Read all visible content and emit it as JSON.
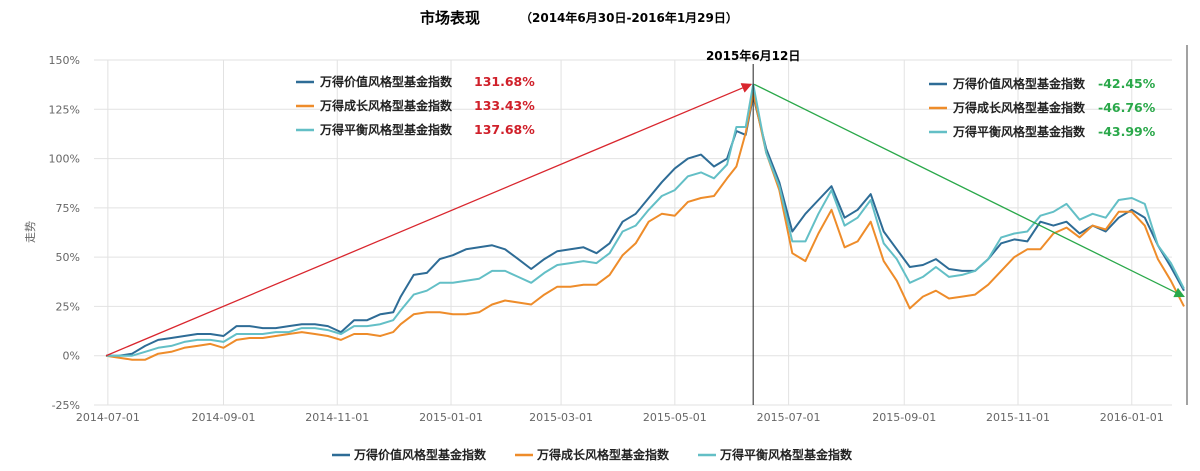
{
  "title": "市场表现",
  "subtitle": "（2014年6月30日-2016年1月29日）",
  "colors": {
    "value": "#2e6c96",
    "growth": "#ee8c2a",
    "balance": "#63bfc6",
    "grid": "#e2e2e2",
    "up_arrow": "#d9262e",
    "down_arrow": "#2aa84a"
  },
  "chart_data": {
    "type": "line",
    "ylabel": "走势",
    "ylim": [
      -25,
      150
    ],
    "y_ticks": [
      "-25%",
      "0%",
      "25%",
      "50%",
      "75%",
      "100%",
      "125%",
      "150%"
    ],
    "x_range": [
      "2014-06-30",
      "2016-01-29"
    ],
    "x_ticks": [
      "2014-07-01",
      "2014-09-01",
      "2014-11-01",
      "2015-01-01",
      "2015-03-01",
      "2015-05-01",
      "2015-07-01",
      "2015-09-01",
      "2015-11-01",
      "2016-01-01"
    ],
    "peak_date": "2015-06-12",
    "peak_label": "2015年6月12日",
    "series": [
      {
        "name": "万得价值风格型基金指数",
        "color_key": "value",
        "points": [
          [
            "2014-06-30",
            0
          ],
          [
            "2014-07-07",
            0
          ],
          [
            "2014-07-14",
            1
          ],
          [
            "2014-07-21",
            5
          ],
          [
            "2014-07-28",
            8
          ],
          [
            "2014-08-04",
            9
          ],
          [
            "2014-08-11",
            10
          ],
          [
            "2014-08-18",
            11
          ],
          [
            "2014-08-25",
            11
          ],
          [
            "2014-09-01",
            10
          ],
          [
            "2014-09-08",
            15
          ],
          [
            "2014-09-15",
            15
          ],
          [
            "2014-09-22",
            14
          ],
          [
            "2014-09-29",
            14
          ],
          [
            "2014-10-06",
            15
          ],
          [
            "2014-10-13",
            16
          ],
          [
            "2014-10-20",
            16
          ],
          [
            "2014-10-27",
            15
          ],
          [
            "2014-11-03",
            12
          ],
          [
            "2014-11-10",
            18
          ],
          [
            "2014-11-17",
            18
          ],
          [
            "2014-11-24",
            21
          ],
          [
            "2014-12-01",
            22
          ],
          [
            "2014-12-05",
            30
          ],
          [
            "2014-12-12",
            41
          ],
          [
            "2014-12-19",
            42
          ],
          [
            "2014-12-26",
            49
          ],
          [
            "2015-01-02",
            51
          ],
          [
            "2015-01-09",
            54
          ],
          [
            "2015-01-16",
            55
          ],
          [
            "2015-01-23",
            56
          ],
          [
            "2015-01-30",
            54
          ],
          [
            "2015-02-06",
            49
          ],
          [
            "2015-02-13",
            44
          ],
          [
            "2015-02-20",
            49
          ],
          [
            "2015-02-27",
            53
          ],
          [
            "2015-03-06",
            54
          ],
          [
            "2015-03-13",
            55
          ],
          [
            "2015-03-20",
            52
          ],
          [
            "2015-03-27",
            57
          ],
          [
            "2015-04-03",
            68
          ],
          [
            "2015-04-10",
            72
          ],
          [
            "2015-04-17",
            80
          ],
          [
            "2015-04-24",
            88
          ],
          [
            "2015-05-01",
            95
          ],
          [
            "2015-05-08",
            100
          ],
          [
            "2015-05-15",
            102
          ],
          [
            "2015-05-22",
            96
          ],
          [
            "2015-05-29",
            100
          ],
          [
            "2015-06-03",
            114
          ],
          [
            "2015-06-08",
            112
          ],
          [
            "2015-06-12",
            131.68
          ],
          [
            "2015-06-19",
            105
          ],
          [
            "2015-06-26",
            88
          ],
          [
            "2015-07-03",
            63
          ],
          [
            "2015-07-10",
            72
          ],
          [
            "2015-07-17",
            79
          ],
          [
            "2015-07-24",
            86
          ],
          [
            "2015-07-31",
            70
          ],
          [
            "2015-08-07",
            74
          ],
          [
            "2015-08-14",
            82
          ],
          [
            "2015-08-21",
            63
          ],
          [
            "2015-08-28",
            54
          ],
          [
            "2015-09-04",
            45
          ],
          [
            "2015-09-11",
            46
          ],
          [
            "2015-09-18",
            49
          ],
          [
            "2015-09-25",
            44
          ],
          [
            "2015-10-02",
            43
          ],
          [
            "2015-10-09",
            43
          ],
          [
            "2015-10-16",
            49
          ],
          [
            "2015-10-23",
            57
          ],
          [
            "2015-10-30",
            59
          ],
          [
            "2015-11-06",
            58
          ],
          [
            "2015-11-13",
            68
          ],
          [
            "2015-11-20",
            66
          ],
          [
            "2015-11-27",
            68
          ],
          [
            "2015-12-04",
            62
          ],
          [
            "2015-12-11",
            66
          ],
          [
            "2015-12-18",
            63
          ],
          [
            "2015-12-25",
            70
          ],
          [
            "2016-01-01",
            74
          ],
          [
            "2016-01-08",
            70
          ],
          [
            "2016-01-15",
            56
          ],
          [
            "2016-01-22",
            45
          ],
          [
            "2016-01-29",
            33
          ]
        ]
      },
      {
        "name": "万得成长风格型基金指数",
        "color_key": "growth",
        "points": [
          [
            "2014-06-30",
            0
          ],
          [
            "2014-07-07",
            -1
          ],
          [
            "2014-07-14",
            -2
          ],
          [
            "2014-07-21",
            -2
          ],
          [
            "2014-07-28",
            1
          ],
          [
            "2014-08-04",
            2
          ],
          [
            "2014-08-11",
            4
          ],
          [
            "2014-08-18",
            5
          ],
          [
            "2014-08-25",
            6
          ],
          [
            "2014-09-01",
            4
          ],
          [
            "2014-09-08",
            8
          ],
          [
            "2014-09-15",
            9
          ],
          [
            "2014-09-22",
            9
          ],
          [
            "2014-09-29",
            10
          ],
          [
            "2014-10-06",
            11
          ],
          [
            "2014-10-13",
            12
          ],
          [
            "2014-10-20",
            11
          ],
          [
            "2014-10-27",
            10
          ],
          [
            "2014-11-03",
            8
          ],
          [
            "2014-11-10",
            11
          ],
          [
            "2014-11-17",
            11
          ],
          [
            "2014-11-24",
            10
          ],
          [
            "2014-12-01",
            12
          ],
          [
            "2014-12-05",
            16
          ],
          [
            "2014-12-12",
            21
          ],
          [
            "2014-12-19",
            22
          ],
          [
            "2014-12-26",
            22
          ],
          [
            "2015-01-02",
            21
          ],
          [
            "2015-01-09",
            21
          ],
          [
            "2015-01-16",
            22
          ],
          [
            "2015-01-23",
            26
          ],
          [
            "2015-01-30",
            28
          ],
          [
            "2015-02-06",
            27
          ],
          [
            "2015-02-13",
            26
          ],
          [
            "2015-02-20",
            31
          ],
          [
            "2015-02-27",
            35
          ],
          [
            "2015-03-06",
            35
          ],
          [
            "2015-03-13",
            36
          ],
          [
            "2015-03-20",
            36
          ],
          [
            "2015-03-27",
            41
          ],
          [
            "2015-04-03",
            51
          ],
          [
            "2015-04-10",
            57
          ],
          [
            "2015-04-17",
            68
          ],
          [
            "2015-04-24",
            72
          ],
          [
            "2015-05-01",
            71
          ],
          [
            "2015-05-08",
            78
          ],
          [
            "2015-05-15",
            80
          ],
          [
            "2015-05-22",
            81
          ],
          [
            "2015-05-29",
            90
          ],
          [
            "2015-06-03",
            96
          ],
          [
            "2015-06-08",
            113
          ],
          [
            "2015-06-12",
            133.43
          ],
          [
            "2015-06-19",
            103
          ],
          [
            "2015-06-26",
            84
          ],
          [
            "2015-07-03",
            52
          ],
          [
            "2015-07-10",
            48
          ],
          [
            "2015-07-17",
            62
          ],
          [
            "2015-07-24",
            74
          ],
          [
            "2015-07-31",
            55
          ],
          [
            "2015-08-07",
            58
          ],
          [
            "2015-08-14",
            68
          ],
          [
            "2015-08-21",
            48
          ],
          [
            "2015-08-28",
            38
          ],
          [
            "2015-09-04",
            24
          ],
          [
            "2015-09-11",
            30
          ],
          [
            "2015-09-18",
            33
          ],
          [
            "2015-09-25",
            29
          ],
          [
            "2015-10-02",
            30
          ],
          [
            "2015-10-09",
            31
          ],
          [
            "2015-10-16",
            36
          ],
          [
            "2015-10-23",
            43
          ],
          [
            "2015-10-30",
            50
          ],
          [
            "2015-11-06",
            54
          ],
          [
            "2015-11-13",
            54
          ],
          [
            "2015-11-20",
            62
          ],
          [
            "2015-11-27",
            65
          ],
          [
            "2015-12-04",
            60
          ],
          [
            "2015-12-11",
            66
          ],
          [
            "2015-12-18",
            64
          ],
          [
            "2015-12-25",
            73
          ],
          [
            "2016-01-01",
            73
          ],
          [
            "2016-01-08",
            66
          ],
          [
            "2016-01-15",
            49
          ],
          [
            "2016-01-22",
            38
          ],
          [
            "2016-01-29",
            25
          ]
        ]
      },
      {
        "name": "万得平衡风格型基金指数",
        "color_key": "balance",
        "points": [
          [
            "2014-06-30",
            0
          ],
          [
            "2014-07-07",
            0
          ],
          [
            "2014-07-14",
            0
          ],
          [
            "2014-07-21",
            2
          ],
          [
            "2014-07-28",
            4
          ],
          [
            "2014-08-04",
            5
          ],
          [
            "2014-08-11",
            7
          ],
          [
            "2014-08-18",
            8
          ],
          [
            "2014-08-25",
            8
          ],
          [
            "2014-09-01",
            7
          ],
          [
            "2014-09-08",
            11
          ],
          [
            "2014-09-15",
            11
          ],
          [
            "2014-09-22",
            11
          ],
          [
            "2014-09-29",
            12
          ],
          [
            "2014-10-06",
            12
          ],
          [
            "2014-10-13",
            14
          ],
          [
            "2014-10-20",
            14
          ],
          [
            "2014-10-27",
            13
          ],
          [
            "2014-11-03",
            11
          ],
          [
            "2014-11-10",
            15
          ],
          [
            "2014-11-17",
            15
          ],
          [
            "2014-11-24",
            16
          ],
          [
            "2014-12-01",
            18
          ],
          [
            "2014-12-05",
            23
          ],
          [
            "2014-12-12",
            31
          ],
          [
            "2014-12-19",
            33
          ],
          [
            "2014-12-26",
            37
          ],
          [
            "2015-01-02",
            37
          ],
          [
            "2015-01-09",
            38
          ],
          [
            "2015-01-16",
            39
          ],
          [
            "2015-01-23",
            43
          ],
          [
            "2015-01-30",
            43
          ],
          [
            "2015-02-06",
            40
          ],
          [
            "2015-02-13",
            37
          ],
          [
            "2015-02-20",
            42
          ],
          [
            "2015-02-27",
            46
          ],
          [
            "2015-03-06",
            47
          ],
          [
            "2015-03-13",
            48
          ],
          [
            "2015-03-20",
            47
          ],
          [
            "2015-03-27",
            52
          ],
          [
            "2015-04-03",
            63
          ],
          [
            "2015-04-10",
            66
          ],
          [
            "2015-04-17",
            74
          ],
          [
            "2015-04-24",
            81
          ],
          [
            "2015-05-01",
            84
          ],
          [
            "2015-05-08",
            91
          ],
          [
            "2015-05-15",
            93
          ],
          [
            "2015-05-22",
            90
          ],
          [
            "2015-05-29",
            97
          ],
          [
            "2015-06-03",
            116
          ],
          [
            "2015-06-08",
            116
          ],
          [
            "2015-06-12",
            137.68
          ],
          [
            "2015-06-19",
            103
          ],
          [
            "2015-06-26",
            86
          ],
          [
            "2015-07-03",
            58
          ],
          [
            "2015-07-10",
            58
          ],
          [
            "2015-07-17",
            72
          ],
          [
            "2015-07-24",
            84
          ],
          [
            "2015-07-31",
            66
          ],
          [
            "2015-08-07",
            70
          ],
          [
            "2015-08-14",
            79
          ],
          [
            "2015-08-21",
            57
          ],
          [
            "2015-08-28",
            49
          ],
          [
            "2015-09-04",
            37
          ],
          [
            "2015-09-11",
            40
          ],
          [
            "2015-09-18",
            45
          ],
          [
            "2015-09-25",
            40
          ],
          [
            "2015-10-02",
            41
          ],
          [
            "2015-10-09",
            43
          ],
          [
            "2015-10-16",
            49
          ],
          [
            "2015-10-23",
            60
          ],
          [
            "2015-10-30",
            62
          ],
          [
            "2015-11-06",
            63
          ],
          [
            "2015-11-13",
            71
          ],
          [
            "2015-11-20",
            73
          ],
          [
            "2015-11-27",
            77
          ],
          [
            "2015-12-04",
            69
          ],
          [
            "2015-12-11",
            72
          ],
          [
            "2015-12-18",
            70
          ],
          [
            "2015-12-25",
            79
          ],
          [
            "2016-01-01",
            80
          ],
          [
            "2016-01-08",
            77
          ],
          [
            "2016-01-15",
            56
          ],
          [
            "2016-01-22",
            47
          ],
          [
            "2016-01-29",
            34
          ]
        ]
      }
    ],
    "annotations": {
      "before_peak": [
        {
          "name": "万得价值风格型基金指数",
          "value": "131.68%",
          "color_key": "value"
        },
        {
          "name": "万得成长风格型基金指数",
          "value": "133.43%",
          "color_key": "growth"
        },
        {
          "name": "万得平衡风格型基金指数",
          "value": "137.68%",
          "color_key": "balance"
        }
      ],
      "after_peak": [
        {
          "name": "万得价值风格型基金指数",
          "value": "-42.45%",
          "color_key": "value"
        },
        {
          "name": "万得成长风格型基金指数",
          "value": "-46.76%",
          "color_key": "growth"
        },
        {
          "name": "万得平衡风格型基金指数",
          "value": "-43.99%",
          "color_key": "balance"
        }
      ]
    }
  }
}
